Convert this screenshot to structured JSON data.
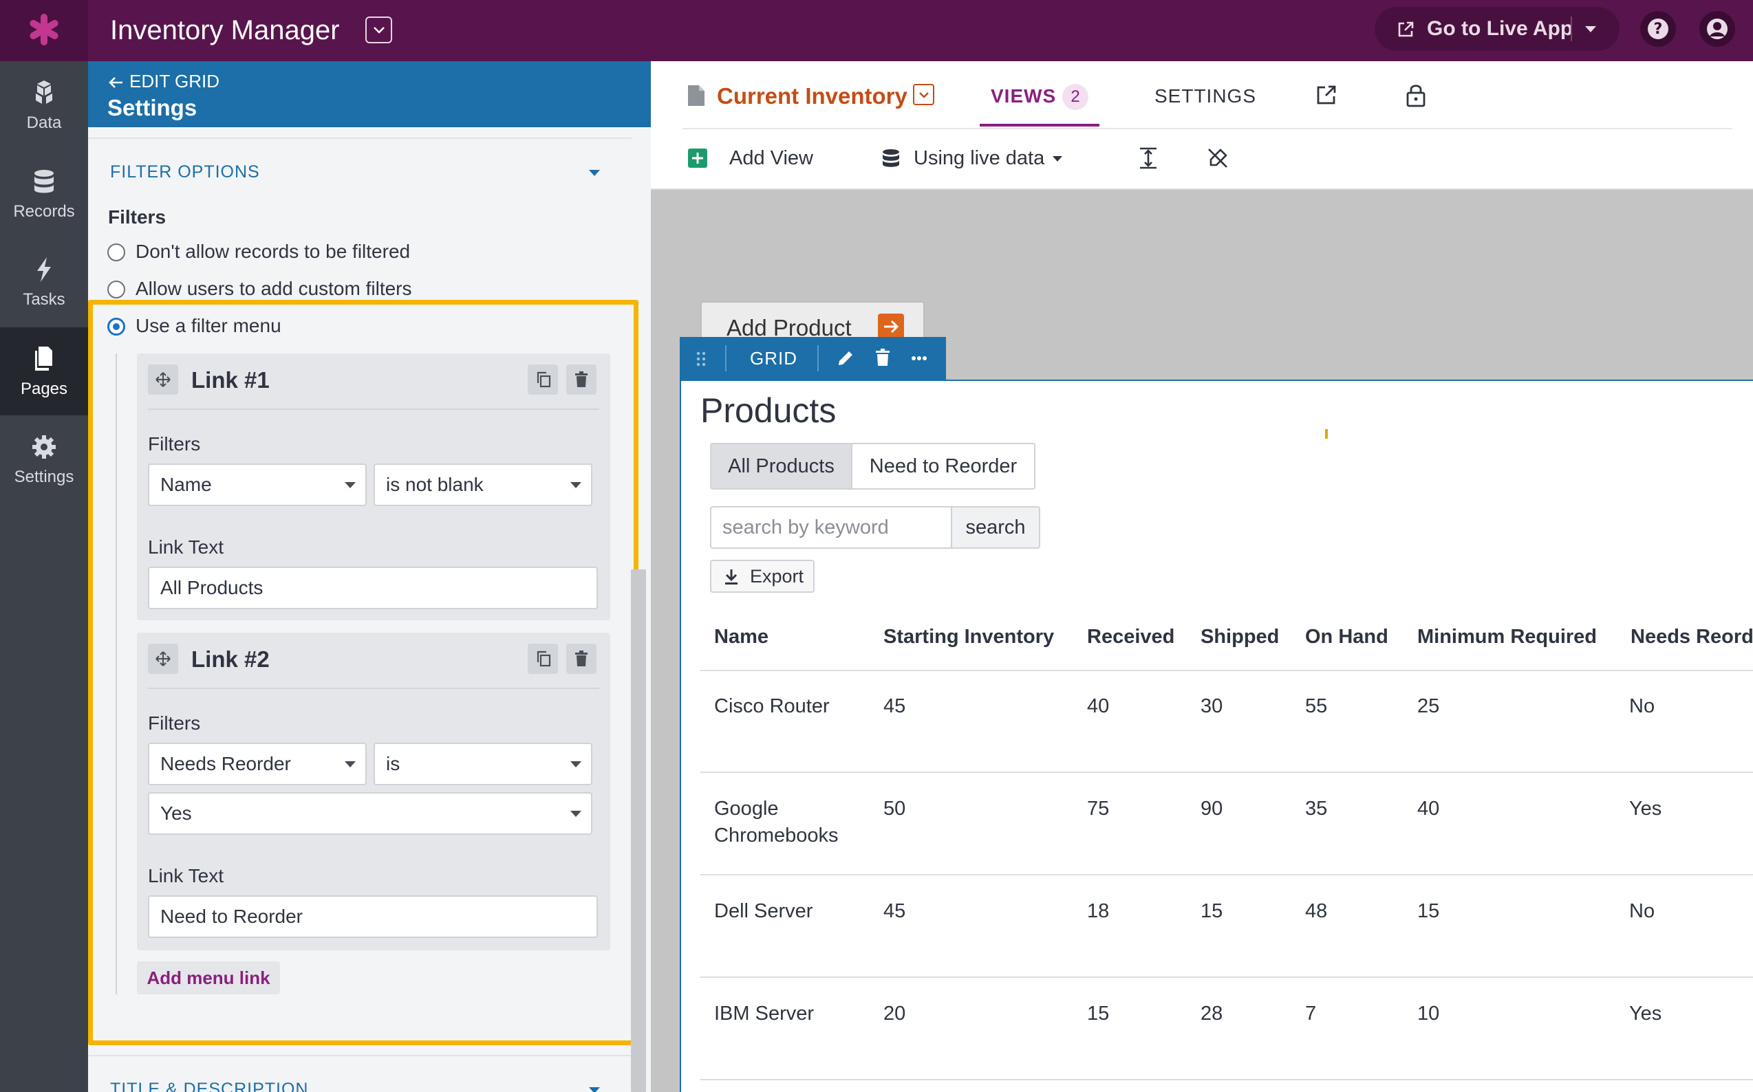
{
  "app": {
    "title": "Inventory Manager",
    "live_app_label": "Go to Live App"
  },
  "nav": [
    {
      "id": "data",
      "label": "Data",
      "icon": "data-icon"
    },
    {
      "id": "records",
      "label": "Records",
      "icon": "database-icon"
    },
    {
      "id": "tasks",
      "label": "Tasks",
      "icon": "lightning-icon"
    },
    {
      "id": "pages",
      "label": "Pages",
      "icon": "pages-icon",
      "active": true
    },
    {
      "id": "settings",
      "label": "Settings",
      "icon": "gear-icon"
    }
  ],
  "panel": {
    "back_label": "EDIT GRID",
    "title": "Settings",
    "filter_section": "FILTER OPTIONS",
    "filters_label": "Filters",
    "options": [
      {
        "label": "Don't allow records to be filtered",
        "selected": false
      },
      {
        "label": "Allow users to add custom filters",
        "selected": false
      },
      {
        "label": "Use a filter menu",
        "selected": true
      }
    ],
    "links": [
      {
        "title": "Link #1",
        "filters_label": "Filters",
        "field": "Name",
        "operator": "is not blank",
        "value": "",
        "link_text_label": "Link Text",
        "link_text": "All Products"
      },
      {
        "title": "Link #2",
        "filters_label": "Filters",
        "field": "Needs Reorder",
        "operator": "is",
        "value": "Yes",
        "link_text_label": "Link Text",
        "link_text": "Need to Reorder"
      }
    ],
    "add_link_label": "Add menu link",
    "next_section": "TITLE & DESCRIPTION"
  },
  "header": {
    "doc_title": "Current Inventory",
    "views_label": "VIEWS",
    "views_count": "2",
    "settings_label": "SETTINGS",
    "add_view_label": "Add View",
    "data_source_label": "Using live data"
  },
  "canvas": {
    "add_product_label": "Add Product",
    "grid_label": "GRID",
    "products_title": "Products",
    "tabs": [
      "All Products",
      "Need to Reorder"
    ],
    "active_tab": "All Products",
    "search_placeholder": "search by keyword",
    "search_button": "search",
    "export_label": "Export"
  },
  "table": {
    "columns": [
      "Name",
      "Starting Inventory",
      "Received",
      "Shipped",
      "On Hand",
      "Minimum Required",
      "Needs Reorder"
    ],
    "rows": [
      [
        "Cisco Router",
        "45",
        "40",
        "30",
        "55",
        "25",
        "No"
      ],
      [
        "Google Chromebooks",
        "50",
        "75",
        "90",
        "35",
        "40",
        "Yes"
      ],
      [
        "Dell Server",
        "45",
        "18",
        "15",
        "48",
        "15",
        "No"
      ],
      [
        "IBM Server",
        "20",
        "15",
        "28",
        "7",
        "10",
        "Yes"
      ]
    ]
  },
  "colors": {
    "topbar": "#58154d",
    "accent_purple": "#8a1f7e",
    "panel_header": "#1c6fa8",
    "highlight": "#f4b400",
    "doc_title": "#c44d14",
    "nav": "#3d4149"
  }
}
